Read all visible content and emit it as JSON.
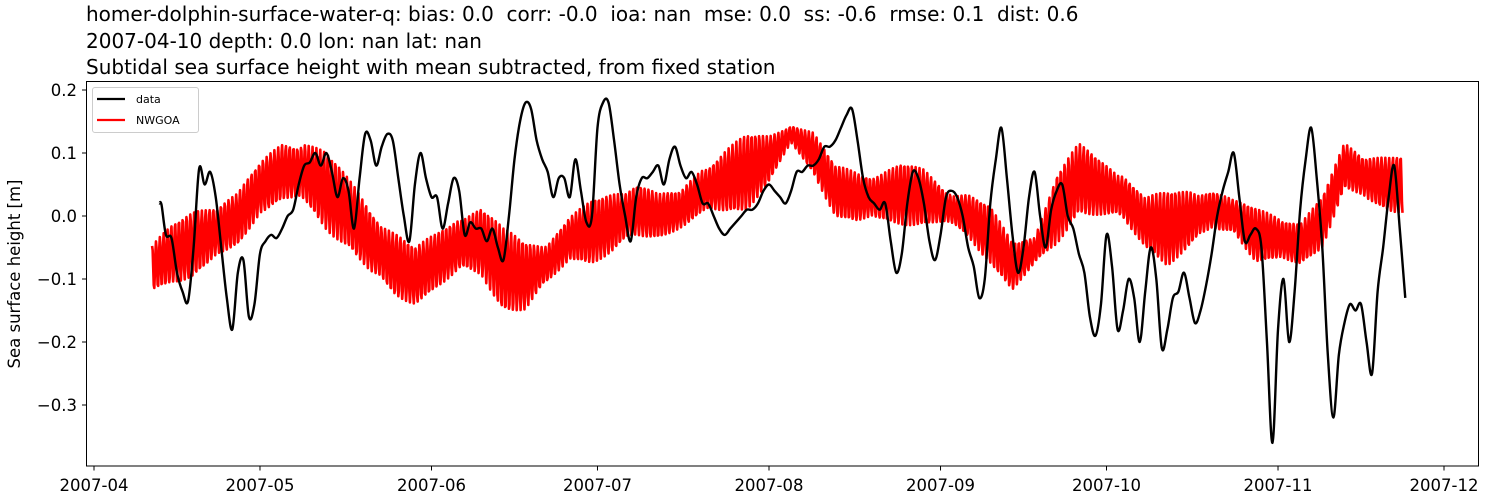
{
  "header": {
    "line1": "homer-dolphin-surface-water-q: bias: 0.0  corr: -0.0  ioa: nan  mse: 0.0  ss: -0.6  rmse: 0.1  dist: 0.6",
    "line2": "2007-04-10 depth: 0.0 lon: nan lat: nan",
    "line3": "Subtidal sea surface height with mean subtracted, from fixed station"
  },
  "chart_data": {
    "type": "line",
    "title": "homer-dolphin-surface-water-q: bias: 0.0  corr: -0.0  ioa: nan  mse: 0.0  ss: -0.6  rmse: 0.1  dist: 0.6 / 2007-04-10 depth: 0.0 lon: nan lat: nan / Subtidal sea surface height with mean subtracted, from fixed station",
    "xlabel": "",
    "ylabel": "Sea surface height [m]",
    "ylim": [
      -0.395,
      0.215
    ],
    "xlim": [
      "2007-03-29",
      "2007-12-12"
    ],
    "grid": false,
    "legend_position": "upper left",
    "x_ticks": [
      "2007-04",
      "2007-05",
      "2007-06",
      "2007-07",
      "2007-08",
      "2007-09",
      "2007-10",
      "2007-11",
      "2007-12"
    ],
    "y_ticks": [
      0.2,
      0.1,
      0.0,
      -0.1,
      -0.2,
      -0.3
    ],
    "y_tick_labels": [
      "0.2",
      "0.1",
      "0.0",
      "−0.1",
      "−0.2",
      "−0.3"
    ],
    "colors": {
      "data": "#000000",
      "NWGOA": "#ff0000"
    },
    "x_day_offset_from": "2007-04-01",
    "series": [
      {
        "name": "data",
        "color": "#000000",
        "x_days": [
          11.8,
          12.2,
          13,
          14,
          15,
          16,
          17,
          18,
          19,
          20,
          21,
          22,
          23,
          24,
          25,
          26,
          27,
          28,
          29,
          30,
          31,
          32,
          33,
          34,
          35,
          36,
          37,
          38,
          39,
          40,
          41,
          42,
          43,
          44,
          45,
          46,
          47,
          48,
          49,
          50,
          51,
          52,
          53,
          54,
          55,
          56,
          57,
          58,
          59,
          60,
          61,
          62,
          63,
          64,
          65,
          66,
          67,
          68,
          69,
          70,
          71,
          72,
          73,
          74,
          75,
          76,
          77,
          78,
          79,
          80,
          81,
          82,
          83,
          84,
          85,
          86,
          87,
          88,
          89,
          90,
          91,
          92,
          93,
          94,
          95,
          96,
          97,
          98,
          99,
          100,
          101,
          102,
          103,
          104,
          105,
          106,
          107,
          108,
          109,
          110,
          111,
          112,
          113,
          114,
          115,
          116,
          117,
          118,
          119,
          120,
          121,
          122,
          123,
          124,
          125,
          126,
          127,
          128,
          129,
          130,
          131,
          132,
          133,
          134,
          135,
          136,
          137,
          138,
          139,
          140,
          141,
          142,
          143,
          144,
          145,
          146,
          147,
          148,
          149,
          150,
          151,
          152,
          153,
          154,
          155,
          156,
          157,
          158,
          159,
          160,
          161,
          162,
          163,
          164,
          165,
          166,
          167,
          168,
          169,
          170,
          171,
          172,
          173,
          174,
          175,
          176,
          177,
          178,
          179,
          180,
          181,
          182,
          183,
          184,
          185,
          186,
          187,
          188,
          189,
          190,
          191,
          192,
          193,
          194,
          195,
          196,
          197,
          198,
          199,
          200,
          201,
          202,
          203,
          204,
          205,
          206,
          207,
          208,
          209,
          210,
          211,
          212,
          213,
          214,
          215,
          216,
          217,
          218,
          219,
          220,
          221,
          222,
          223,
          224,
          225,
          226,
          227,
          228,
          229,
          230,
          231,
          232,
          233,
          234,
          235,
          236,
          237
        ],
        "values": [
          0.02,
          0.018,
          -0.03,
          -0.035,
          -0.09,
          -0.12,
          -0.135,
          -0.05,
          0.075,
          0.05,
          0.07,
          0.03,
          -0.05,
          -0.13,
          -0.18,
          -0.09,
          -0.07,
          -0.16,
          -0.14,
          -0.06,
          -0.04,
          -0.03,
          -0.035,
          -0.02,
          0.0,
          0.01,
          0.05,
          0.08,
          0.085,
          0.1,
          0.08,
          0.1,
          0.07,
          0.03,
          0.06,
          0.04,
          -0.02,
          0.06,
          0.13,
          0.12,
          0.08,
          0.11,
          0.13,
          0.12,
          0.06,
          -0.0,
          -0.04,
          0.05,
          0.1,
          0.06,
          0.03,
          0.03,
          -0.02,
          0.02,
          0.06,
          0.04,
          -0.03,
          -0.01,
          -0.02,
          -0.02,
          -0.04,
          -0.02,
          -0.05,
          -0.07,
          0.0,
          0.09,
          0.15,
          0.18,
          0.17,
          0.12,
          0.09,
          0.07,
          0.03,
          0.06,
          0.06,
          0.03,
          0.09,
          0.04,
          -0.01,
          0.0,
          0.14,
          0.18,
          0.18,
          0.12,
          0.05,
          0.0,
          -0.04,
          0.03,
          0.06,
          0.06,
          0.07,
          0.08,
          0.05,
          0.09,
          0.11,
          0.08,
          0.06,
          0.07,
          0.05,
          0.02,
          0.02,
          0.0,
          -0.02,
          -0.03,
          -0.02,
          -0.01,
          0.0,
          0.01,
          0.01,
          0.02,
          0.04,
          0.05,
          0.04,
          0.03,
          0.02,
          0.04,
          0.07,
          0.07,
          0.08,
          0.08,
          0.09,
          0.11,
          0.11,
          0.12,
          0.14,
          0.16,
          0.17,
          0.12,
          0.06,
          0.03,
          0.02,
          0.01,
          0.02,
          -0.04,
          -0.09,
          -0.06,
          0.02,
          0.07,
          0.06,
          0.02,
          -0.04,
          -0.07,
          -0.03,
          0.03,
          0.04,
          0.03,
          0.0,
          -0.05,
          -0.08,
          -0.13,
          -0.1,
          0.02,
          0.09,
          0.14,
          0.06,
          -0.03,
          -0.09,
          -0.05,
          0.03,
          0.07,
          0.0,
          -0.05,
          0.01,
          0.04,
          0.05,
          0.0,
          -0.02,
          -0.06,
          -0.09,
          -0.16,
          -0.19,
          -0.14,
          -0.03,
          -0.08,
          -0.18,
          -0.15,
          -0.1,
          -0.13,
          -0.2,
          -0.12,
          -0.05,
          -0.1,
          -0.21,
          -0.18,
          -0.13,
          -0.12,
          -0.09,
          -0.13,
          -0.17,
          -0.15,
          -0.11,
          -0.06,
          0.0,
          0.04,
          0.07,
          0.1,
          0.03,
          -0.04,
          -0.03,
          -0.02,
          -0.05,
          -0.2,
          -0.36,
          -0.18,
          -0.1,
          -0.2,
          -0.12,
          0.01,
          0.09,
          0.14,
          0.06,
          -0.05,
          -0.22,
          -0.32,
          -0.22,
          -0.17,
          -0.14,
          -0.15,
          -0.14,
          -0.2,
          -0.25,
          -0.12,
          -0.05,
          0.03,
          0.08,
          -0.02,
          -0.13,
          -0.1,
          0.03
        ]
      },
      {
        "name": "NWGOA",
        "color": "#ff0000",
        "description": "Model series with strong tidal oscillation; encoded as daily envelope (mean and half-amplitude), oscillation period ~0.5 day rendered at ~2 cycles per day-spacing",
        "x_days": [
          10,
          14,
          18,
          22,
          26,
          30,
          34,
          38,
          42,
          46,
          50,
          54,
          58,
          62,
          66,
          70,
          74,
          78,
          82,
          86,
          90,
          94,
          98,
          102,
          106,
          110,
          114,
          118,
          122,
          126,
          130,
          134,
          138,
          142,
          146,
          150,
          154,
          158,
          162,
          166,
          170,
          174,
          178,
          182,
          186,
          190,
          194,
          198,
          202,
          206,
          210,
          214,
          218,
          222,
          226,
          230,
          234,
          238
        ],
        "mean": [
          -0.085,
          -0.06,
          -0.045,
          -0.025,
          -0.005,
          0.045,
          0.07,
          0.07,
          0.04,
          0.005,
          -0.04,
          -0.075,
          -0.095,
          -0.07,
          -0.045,
          -0.04,
          -0.085,
          -0.095,
          -0.075,
          -0.035,
          -0.025,
          -0.01,
          0.01,
          0.0,
          0.01,
          0.04,
          0.055,
          0.07,
          0.09,
          0.13,
          0.1,
          0.04,
          0.03,
          0.03,
          0.035,
          0.03,
          0.015,
          0.0,
          -0.03,
          -0.08,
          -0.055,
          0.01,
          0.06,
          0.045,
          0.03,
          -0.01,
          -0.02,
          -0.005,
          0.01,
          0.0,
          -0.03,
          -0.035,
          -0.045,
          -0.01,
          0.08,
          0.06,
          0.05,
          0.05
        ],
        "half_amplitude": [
          0.04,
          0.045,
          0.055,
          0.055,
          0.045,
          0.04,
          0.05,
          0.06,
          0.065,
          0.055,
          0.06,
          0.06,
          0.045,
          0.045,
          0.055,
          0.06,
          0.065,
          0.06,
          0.04,
          0.035,
          0.05,
          0.055,
          0.05,
          0.035,
          0.03,
          0.045,
          0.055,
          0.06,
          0.04,
          0.02,
          0.035,
          0.04,
          0.045,
          0.045,
          0.05,
          0.045,
          0.03,
          0.04,
          0.045,
          0.04,
          0.03,
          0.06,
          0.055,
          0.05,
          0.045,
          0.04,
          0.06,
          0.055,
          0.035,
          0.025,
          0.045,
          0.045,
          0.035,
          0.04,
          0.04,
          0.045,
          0.045,
          0.045
        ]
      }
    ]
  },
  "legend": {
    "items": [
      {
        "label": "data",
        "color": "#000000"
      },
      {
        "label": "NWGOA",
        "color": "#ff0000"
      }
    ]
  },
  "axes": {
    "ylabel": "Sea surface height [m]"
  }
}
